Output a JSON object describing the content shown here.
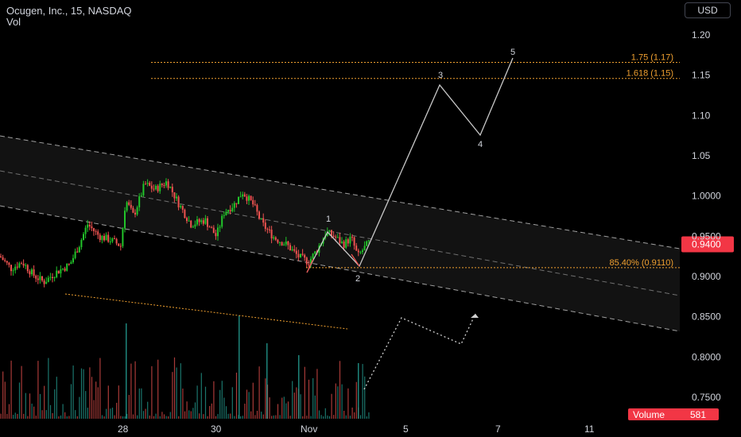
{
  "header": {
    "title": "Ocugen, Inc., 15, NASDAQ",
    "volume_label": "Vol",
    "currency": "USD"
  },
  "colors": {
    "up": "#26a69a",
    "up_bright": "#22c52a",
    "down": "#ef5350",
    "channel": "#ffffff",
    "fib": "#f0a030",
    "tag_bg": "#f23645"
  },
  "chart_data": {
    "type": "candlestick",
    "y_axis_ticks": [
      "1.20",
      "1.15",
      "1.10",
      "1.05",
      "1.0000",
      "0.9500",
      "0.9000",
      "0.8500",
      "0.8000",
      "0.7500"
    ],
    "ylim": [
      0.73,
      1.22
    ],
    "x_axis_ticks": [
      "28",
      "30",
      "Nov",
      "5",
      "7",
      "11"
    ],
    "last_price": "0.9400",
    "fib_levels": [
      {
        "label": "1.75 (1.17)",
        "value": 1.166
      },
      {
        "label": "1.618 (1.15)",
        "value": 1.146
      },
      {
        "label": "85.40% (0.9110)",
        "value": 0.911
      }
    ],
    "wave_labels": [
      "1",
      "2",
      "3",
      "4",
      "5"
    ],
    "volume": {
      "label": "Volume",
      "value": "581"
    }
  }
}
